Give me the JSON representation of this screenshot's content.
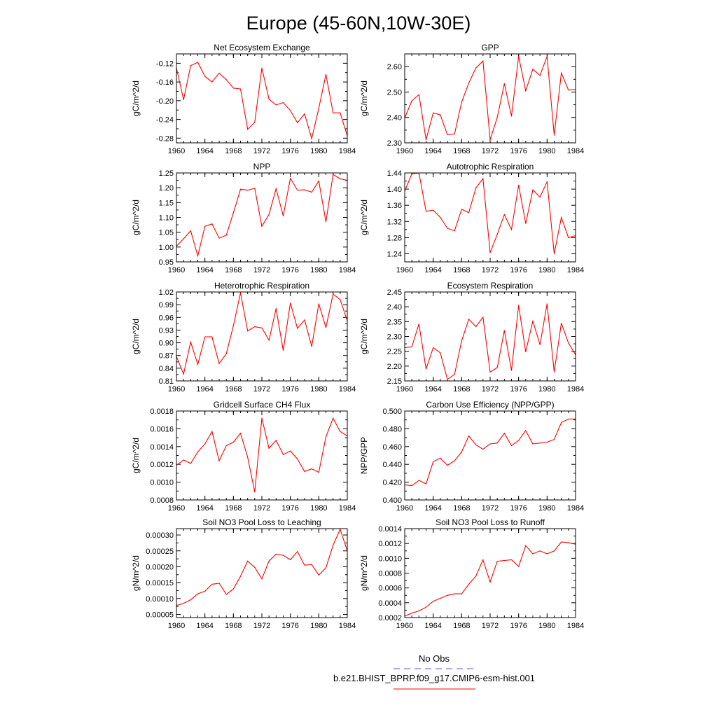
{
  "title": "Europe (45-60N,10W-30E)",
  "legend": {
    "obs_label": "No Obs",
    "obs_color": "#5b5bd6",
    "case_label": "b.e21.BHIST_BPRP.f09_g17.CMIP6-esm-hist.001",
    "case_color": "#ff0000"
  },
  "series_color": "#ff0000",
  "chart_data": [
    {
      "type": "line",
      "title": "Net Ecosystem Exchange",
      "ylabel": "gC/m^2/d",
      "xlim": [
        1960,
        1984
      ],
      "xticks": [
        1960,
        1964,
        1968,
        1972,
        1976,
        1980,
        1984
      ],
      "ylim": [
        -0.29,
        -0.1
      ],
      "yticks": [
        "-0.12",
        "-0.16",
        "-0.20",
        "-0.24",
        "-0.28"
      ],
      "x": [
        1960,
        1961,
        1962,
        1963,
        1964,
        1965,
        1966,
        1967,
        1968,
        1969,
        1970,
        1971,
        1972,
        1973,
        1974,
        1975,
        1976,
        1977,
        1978,
        1979,
        1980,
        1981,
        1982,
        1983,
        1984
      ],
      "values": [
        -0.13,
        -0.198,
        -0.125,
        -0.118,
        -0.148,
        -0.16,
        -0.141,
        -0.155,
        -0.173,
        -0.175,
        -0.261,
        -0.246,
        -0.13,
        -0.197,
        -0.209,
        -0.204,
        -0.221,
        -0.247,
        -0.228,
        -0.281,
        -0.216,
        -0.144,
        -0.226,
        -0.226,
        -0.275
      ]
    },
    {
      "type": "line",
      "title": "GPP",
      "ylabel": "gC/m^2/d",
      "xlim": [
        1960,
        1984
      ],
      "xticks": [
        1960,
        1964,
        1968,
        1972,
        1976,
        1980,
        1984
      ],
      "ylim": [
        2.3,
        2.65
      ],
      "yticks": [
        "2.60",
        "2.50",
        "2.40",
        "2.30"
      ],
      "x": [
        1960,
        1961,
        1962,
        1963,
        1964,
        1965,
        1966,
        1967,
        1968,
        1969,
        1970,
        1971,
        1972,
        1973,
        1974,
        1975,
        1976,
        1977,
        1978,
        1979,
        1980,
        1981,
        1982,
        1983,
        1984
      ],
      "values": [
        2.398,
        2.465,
        2.49,
        2.312,
        2.418,
        2.41,
        2.332,
        2.335,
        2.46,
        2.535,
        2.595,
        2.622,
        2.312,
        2.4,
        2.533,
        2.405,
        2.64,
        2.505,
        2.59,
        2.565,
        2.64,
        2.33,
        2.575,
        2.508,
        2.51
      ]
    },
    {
      "type": "line",
      "title": "NPP",
      "ylabel": "gC/m^2/d",
      "xlim": [
        1960,
        1984
      ],
      "xticks": [
        1960,
        1964,
        1968,
        1972,
        1976,
        1980,
        1984
      ],
      "ylim": [
        0.95,
        1.25
      ],
      "yticks": [
        "1.25",
        "1.20",
        "1.15",
        "1.10",
        "1.05",
        "1.00",
        "0.95"
      ],
      "x": [
        1960,
        1961,
        1962,
        1963,
        1964,
        1965,
        1966,
        1967,
        1968,
        1969,
        1970,
        1971,
        1972,
        1973,
        1974,
        1975,
        1976,
        1977,
        1978,
        1979,
        1980,
        1981,
        1982,
        1983,
        1984
      ],
      "values": [
        1.003,
        1.028,
        1.055,
        0.97,
        1.07,
        1.078,
        1.03,
        1.04,
        1.115,
        1.195,
        1.192,
        1.198,
        1.07,
        1.11,
        1.197,
        1.105,
        1.232,
        1.192,
        1.193,
        1.185,
        1.223,
        1.085,
        1.245,
        1.23,
        1.225
      ]
    },
    {
      "type": "line",
      "title": "Autotrophic Respiration",
      "ylabel": "gC/m^2/d",
      "xlim": [
        1960,
        1984
      ],
      "xticks": [
        1960,
        1964,
        1968,
        1972,
        1976,
        1980,
        1984
      ],
      "ylim": [
        1.22,
        1.44
      ],
      "yticks": [
        "1.44",
        "1.40",
        "1.36",
        "1.32",
        "1.28",
        "1.24"
      ],
      "x": [
        1960,
        1961,
        1962,
        1963,
        1964,
        1965,
        1966,
        1967,
        1968,
        1969,
        1970,
        1971,
        1972,
        1973,
        1974,
        1975,
        1976,
        1977,
        1978,
        1979,
        1980,
        1981,
        1982,
        1983,
        1984
      ],
      "values": [
        1.395,
        1.438,
        1.44,
        1.345,
        1.348,
        1.33,
        1.303,
        1.297,
        1.35,
        1.342,
        1.403,
        1.426,
        1.243,
        1.288,
        1.337,
        1.3,
        1.41,
        1.315,
        1.398,
        1.38,
        1.418,
        1.24,
        1.33,
        1.28,
        1.285
      ]
    },
    {
      "type": "line",
      "title": "Heterotrophic Respiration",
      "ylabel": "gC/m^2/d",
      "xlim": [
        1960,
        1984
      ],
      "xticks": [
        1960,
        1964,
        1968,
        1972,
        1976,
        1980,
        1984
      ],
      "ylim": [
        0.81,
        1.02
      ],
      "yticks": [
        "1.02",
        "0.99",
        "0.96",
        "0.93",
        "0.90",
        "0.87",
        "0.84",
        "0.81"
      ],
      "x": [
        1960,
        1961,
        1962,
        1963,
        1964,
        1965,
        1966,
        1967,
        1968,
        1969,
        1970,
        1971,
        1972,
        1973,
        1974,
        1975,
        1976,
        1977,
        1978,
        1979,
        1980,
        1981,
        1982,
        1983,
        1984
      ],
      "values": [
        0.868,
        0.826,
        0.902,
        0.849,
        0.914,
        0.914,
        0.851,
        0.874,
        0.94,
        1.018,
        0.928,
        0.938,
        0.935,
        0.906,
        0.981,
        0.882,
        0.994,
        0.934,
        0.954,
        0.891,
        0.992,
        0.936,
        1.015,
        1.002,
        0.952
      ]
    },
    {
      "type": "line",
      "title": "Ecosystem Respiration",
      "ylabel": "gC/m^2/d",
      "xlim": [
        1960,
        1984
      ],
      "xticks": [
        1960,
        1964,
        1968,
        1972,
        1976,
        1980,
        1984
      ],
      "ylim": [
        2.15,
        2.45
      ],
      "yticks": [
        "2.45",
        "2.40",
        "2.35",
        "2.30",
        "2.25",
        "2.20",
        "2.15"
      ],
      "x": [
        1960,
        1961,
        1962,
        1963,
        1964,
        1965,
        1966,
        1967,
        1968,
        1969,
        1970,
        1971,
        1972,
        1973,
        1974,
        1975,
        1976,
        1977,
        1978,
        1979,
        1980,
        1981,
        1982,
        1983,
        1984
      ],
      "values": [
        2.262,
        2.265,
        2.342,
        2.19,
        2.262,
        2.245,
        2.155,
        2.172,
        2.285,
        2.358,
        2.333,
        2.365,
        2.18,
        2.195,
        2.32,
        2.185,
        2.405,
        2.248,
        2.352,
        2.272,
        2.41,
        2.18,
        2.345,
        2.278,
        2.238
      ]
    },
    {
      "type": "line",
      "title": "Gridcell Surface CH4 Flux",
      "ylabel": "gC/m^2/d",
      "xlim": [
        1960,
        1984
      ],
      "xticks": [
        1960,
        1964,
        1968,
        1972,
        1976,
        1980,
        1984
      ],
      "ylim": [
        0.0008,
        0.0018
      ],
      "yticks": [
        "0.0018",
        "0.0016",
        "0.0014",
        "0.0012",
        "0.0010",
        "0.0008"
      ],
      "x": [
        1960,
        1961,
        1962,
        1963,
        1964,
        1965,
        1966,
        1967,
        1968,
        1969,
        1970,
        1971,
        1972,
        1973,
        1974,
        1975,
        1976,
        1977,
        1978,
        1979,
        1980,
        1981,
        1982,
        1983,
        1984
      ],
      "values": [
        0.00119,
        0.00125,
        0.00121,
        0.00134,
        0.00143,
        0.00157,
        0.00124,
        0.00141,
        0.00145,
        0.00155,
        0.00128,
        0.00089,
        0.00172,
        0.00138,
        0.00147,
        0.00131,
        0.00135,
        0.00126,
        0.00112,
        0.00115,
        0.00111,
        0.00151,
        0.00172,
        0.00157,
        0.00152
      ]
    },
    {
      "type": "line",
      "title": "Carbon Use Efficiency (NPP/GPP)",
      "ylabel": "NPP/GPP",
      "xlim": [
        1960,
        1984
      ],
      "xticks": [
        1960,
        1964,
        1968,
        1972,
        1976,
        1980,
        1984
      ],
      "ylim": [
        0.4,
        0.5
      ],
      "yticks": [
        "0.500",
        "0.480",
        "0.460",
        "0.440",
        "0.420",
        "0.400"
      ],
      "x": [
        1960,
        1961,
        1962,
        1963,
        1964,
        1965,
        1966,
        1967,
        1968,
        1969,
        1970,
        1971,
        1972,
        1973,
        1974,
        1975,
        1976,
        1977,
        1978,
        1979,
        1980,
        1981,
        1982,
        1983,
        1984
      ],
      "values": [
        0.417,
        0.416,
        0.422,
        0.418,
        0.443,
        0.447,
        0.439,
        0.444,
        0.454,
        0.472,
        0.462,
        0.457,
        0.463,
        0.464,
        0.475,
        0.461,
        0.467,
        0.478,
        0.463,
        0.464,
        0.465,
        0.468,
        0.487,
        0.491,
        0.491
      ]
    },
    {
      "type": "line",
      "title": "Soil NO3 Pool Loss to Leaching",
      "ylabel": "gN/m^2/d",
      "xlim": [
        1960,
        1984
      ],
      "xticks": [
        1960,
        1964,
        1968,
        1972,
        1976,
        1980,
        1984
      ],
      "ylim": [
        4e-05,
        0.00032
      ],
      "yticks": [
        "0.00030",
        "0.00025",
        "0.00020",
        "0.00015",
        "0.00010",
        "0.00005"
      ],
      "x": [
        1960,
        1961,
        1962,
        1963,
        1964,
        1965,
        1966,
        1967,
        1968,
        1969,
        1970,
        1971,
        1972,
        1973,
        1974,
        1975,
        1976,
        1977,
        1978,
        1979,
        1980,
        1981,
        1982,
        1983,
        1984
      ],
      "values": [
        7.8e-05,
        8.5e-05,
        9.6e-05,
        0.000115,
        0.000123,
        0.000145,
        0.000148,
        0.000113,
        0.00013,
        0.00017,
        0.000218,
        0.000198,
        0.000162,
        0.000218,
        0.00024,
        0.000236,
        0.000222,
        0.000248,
        0.000205,
        0.000207,
        0.000174,
        0.000197,
        0.000268,
        0.000318,
        0.00025
      ]
    },
    {
      "type": "line",
      "title": "Soil NO3 Pool Loss to Runoff",
      "ylabel": "gN/m^2/d",
      "xlim": [
        1960,
        1984
      ],
      "xticks": [
        1960,
        1964,
        1968,
        1972,
        1976,
        1980,
        1984
      ],
      "ylim": [
        0.0002,
        0.0014
      ],
      "yticks": [
        "0.0014",
        "0.0012",
        "0.0010",
        "0.0008",
        "0.0006",
        "0.0004",
        "0.0002"
      ],
      "x": [
        1960,
        1961,
        1962,
        1963,
        1964,
        1965,
        1966,
        1967,
        1968,
        1969,
        1970,
        1971,
        1972,
        1973,
        1974,
        1975,
        1976,
        1977,
        1978,
        1979,
        1980,
        1981,
        1982,
        1983,
        1984
      ],
      "values": [
        0.00022,
        0.00026,
        0.00029,
        0.00034,
        0.00042,
        0.00046,
        0.0005,
        0.00052,
        0.00052,
        0.00065,
        0.00076,
        0.00098,
        0.00068,
        0.00096,
        0.00097,
        0.00098,
        0.00089,
        0.00117,
        0.00106,
        0.0011,
        0.00106,
        0.0011,
        0.00122,
        0.00121,
        0.00119
      ]
    }
  ]
}
